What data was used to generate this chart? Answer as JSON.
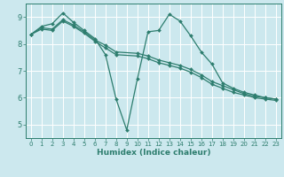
{
  "xlabel": "Humidex (Indice chaleur)",
  "bg_color": "#cce8ee",
  "line_color": "#2d7d6e",
  "grid_color": "#ffffff",
  "xlim": [
    -0.5,
    23.5
  ],
  "ylim": [
    4.5,
    9.5
  ],
  "yticks": [
    5,
    6,
    7,
    8,
    9
  ],
  "xticks": [
    0,
    1,
    2,
    3,
    4,
    5,
    6,
    7,
    8,
    9,
    10,
    11,
    12,
    13,
    14,
    15,
    16,
    17,
    18,
    19,
    20,
    21,
    22,
    23
  ],
  "lines": [
    {
      "x": [
        0,
        1,
        2,
        3,
        4,
        5,
        6,
        7,
        8,
        9,
        10,
        11,
        12,
        13,
        14,
        15,
        16,
        17,
        18,
        19,
        20,
        21,
        22,
        23
      ],
      "y": [
        8.35,
        8.65,
        8.75,
        9.15,
        8.8,
        8.5,
        8.2,
        7.6,
        5.95,
        4.8,
        6.7,
        8.45,
        8.5,
        9.1,
        8.85,
        8.3,
        7.7,
        7.25,
        6.55,
        6.35,
        6.2,
        6.1,
        6.0,
        5.95
      ]
    },
    {
      "x": [
        0,
        1,
        2,
        3,
        4,
        5,
        6,
        7,
        8,
        10,
        11,
        12,
        13,
        14,
        15,
        16,
        17,
        18,
        19,
        20,
        21,
        22,
        23
      ],
      "y": [
        8.35,
        8.55,
        8.5,
        8.85,
        8.65,
        8.4,
        8.1,
        7.85,
        7.6,
        7.55,
        7.45,
        7.3,
        7.2,
        7.1,
        6.95,
        6.75,
        6.5,
        6.35,
        6.2,
        6.1,
        6.0,
        5.95,
        5.9
      ]
    },
    {
      "x": [
        0,
        1,
        2,
        3,
        4,
        5,
        6,
        7,
        8,
        10,
        11,
        12,
        13,
        14,
        15,
        16,
        17,
        18,
        19,
        20,
        21,
        22,
        23
      ],
      "y": [
        8.35,
        8.6,
        8.55,
        8.9,
        8.7,
        8.45,
        8.15,
        7.95,
        7.7,
        7.65,
        7.55,
        7.4,
        7.3,
        7.2,
        7.05,
        6.85,
        6.6,
        6.45,
        6.3,
        6.15,
        6.05,
        6.0,
        5.95
      ]
    }
  ]
}
